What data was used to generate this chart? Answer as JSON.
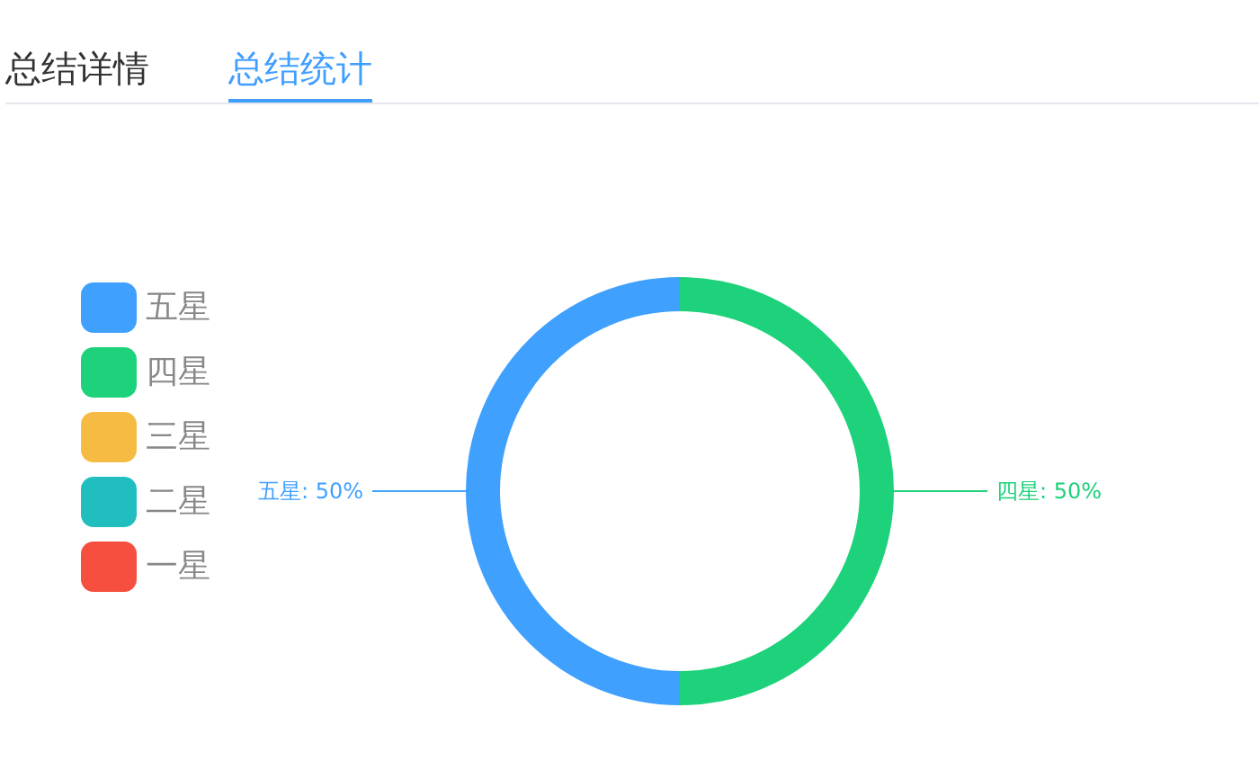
{
  "chart_data": {
    "type": "donut",
    "categories": [
      "五星",
      "四星",
      "三星",
      "二星",
      "一星"
    ],
    "values": [
      50,
      50,
      0,
      0,
      0
    ],
    "colors": [
      "#3fa0fe",
      "#1dd27a",
      "#f6bb43",
      "#21bebf",
      "#f64e3f"
    ],
    "value_labels": [
      "五星: 50%",
      "四星: 50%",
      null,
      null,
      null
    ],
    "legend": "left",
    "annotations": [
      "总结详情",
      "总结统计"
    ]
  }
}
